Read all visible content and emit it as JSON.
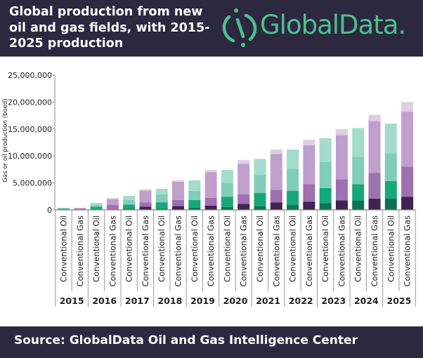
{
  "header": {
    "title": "Global production from new oil and gas fields, with 2015-2025 production",
    "logo_text": "GlobalData."
  },
  "footer": {
    "source": "Source:  GlobalData Oil and Gas Intelligence Center"
  },
  "colors": {
    "background_header": "#2b2840",
    "logo": "#4ec08e",
    "oil": [
      "#0b7352",
      "#17a87a",
      "#82cdb9",
      "#a3dccb"
    ],
    "gas": [
      "#3f2350",
      "#9d70b0",
      "#c09fcc",
      "#e0cce6"
    ]
  },
  "chart_data": {
    "type": "bar",
    "stacked": true,
    "title": "Global production from new oil and gas fields, with 2015-2025 production",
    "ylabel": "Gas or oil production (boed)",
    "xlabel": "",
    "ylim": [
      0,
      25000000
    ],
    "yticks": [
      "0",
      "5,000,000",
      "10,000,000",
      "15,000,000",
      "20,000,000",
      "25,000,000"
    ],
    "ytick_values": [
      0,
      5000000,
      10000000,
      15000000,
      20000000,
      25000000
    ],
    "grid": false,
    "legend": "none",
    "years": [
      "2015",
      "2016",
      "2017",
      "2018",
      "2019",
      "2020",
      "2021",
      "2022",
      "2023",
      "2024",
      "2025"
    ],
    "bar_types": [
      "Conventional Oil",
      "Conventional Gas"
    ],
    "bars": [
      {
        "year": "2015",
        "type": "Conventional Oil",
        "segments": [
          50000,
          150000,
          100000,
          100000
        ]
      },
      {
        "year": "2015",
        "type": "Conventional Gas",
        "segments": [
          50000,
          150000,
          150000,
          50000
        ]
      },
      {
        "year": "2016",
        "type": "Conventional Oil",
        "segments": [
          100000,
          500000,
          300000,
          400000
        ]
      },
      {
        "year": "2016",
        "type": "Conventional Gas",
        "segments": [
          100000,
          800000,
          1100000,
          200000
        ]
      },
      {
        "year": "2017",
        "type": "Conventional Oil",
        "segments": [
          200000,
          800000,
          850000,
          750000
        ]
      },
      {
        "year": "2017",
        "type": "Conventional Gas",
        "segments": [
          600000,
          800000,
          2200000,
          200000
        ]
      },
      {
        "year": "2018",
        "type": "Conventional Oil",
        "segments": [
          200000,
          1200000,
          1500000,
          1000000
        ]
      },
      {
        "year": "2018",
        "type": "Conventional Gas",
        "segments": [
          700000,
          1150000,
          3350000,
          300000
        ]
      },
      {
        "year": "2019",
        "type": "Conventional Oil",
        "segments": [
          400000,
          1450000,
          1700000,
          1950000
        ]
      },
      {
        "year": "2019",
        "type": "Conventional Gas",
        "segments": [
          800000,
          1450000,
          4750000,
          400000
        ]
      },
      {
        "year": "2020",
        "type": "Conventional Oil",
        "segments": [
          550000,
          1900000,
          2600000,
          2350000
        ]
      },
      {
        "year": "2020",
        "type": "Conventional Gas",
        "segments": [
          1100000,
          1800000,
          5650000,
          700000
        ]
      },
      {
        "year": "2021",
        "type": "Conventional Oil",
        "segments": [
          700000,
          2450000,
          3350000,
          2950000
        ]
      },
      {
        "year": "2021",
        "type": "Conventional Gas",
        "segments": [
          1400000,
          2300000,
          6650000,
          850000
        ]
      },
      {
        "year": "2022",
        "type": "Conventional Oil",
        "segments": [
          900000,
          2650000,
          4100000,
          3550000
        ]
      },
      {
        "year": "2022",
        "type": "Conventional Gas",
        "segments": [
          1500000,
          3250000,
          7250000,
          1000000
        ]
      },
      {
        "year": "2023",
        "type": "Conventional Oil",
        "segments": [
          1250000,
          2800000,
          4850000,
          4400000
        ]
      },
      {
        "year": "2023",
        "type": "Conventional Gas",
        "segments": [
          1750000,
          3900000,
          8200000,
          1150000
        ]
      },
      {
        "year": "2024",
        "type": "Conventional Oil",
        "segments": [
          1750000,
          3000000,
          5100000,
          5350000
        ]
      },
      {
        "year": "2024",
        "type": "Conventional Gas",
        "segments": [
          2100000,
          4750000,
          9650000,
          1150000
        ]
      },
      {
        "year": "2025",
        "type": "Conventional Oil",
        "segments": [
          2100000,
          3250000,
          5150000,
          5500000
        ]
      },
      {
        "year": "2025",
        "type": "Conventional Gas",
        "segments": [
          2450000,
          5550000,
          10200000,
          1800000
        ]
      }
    ]
  }
}
